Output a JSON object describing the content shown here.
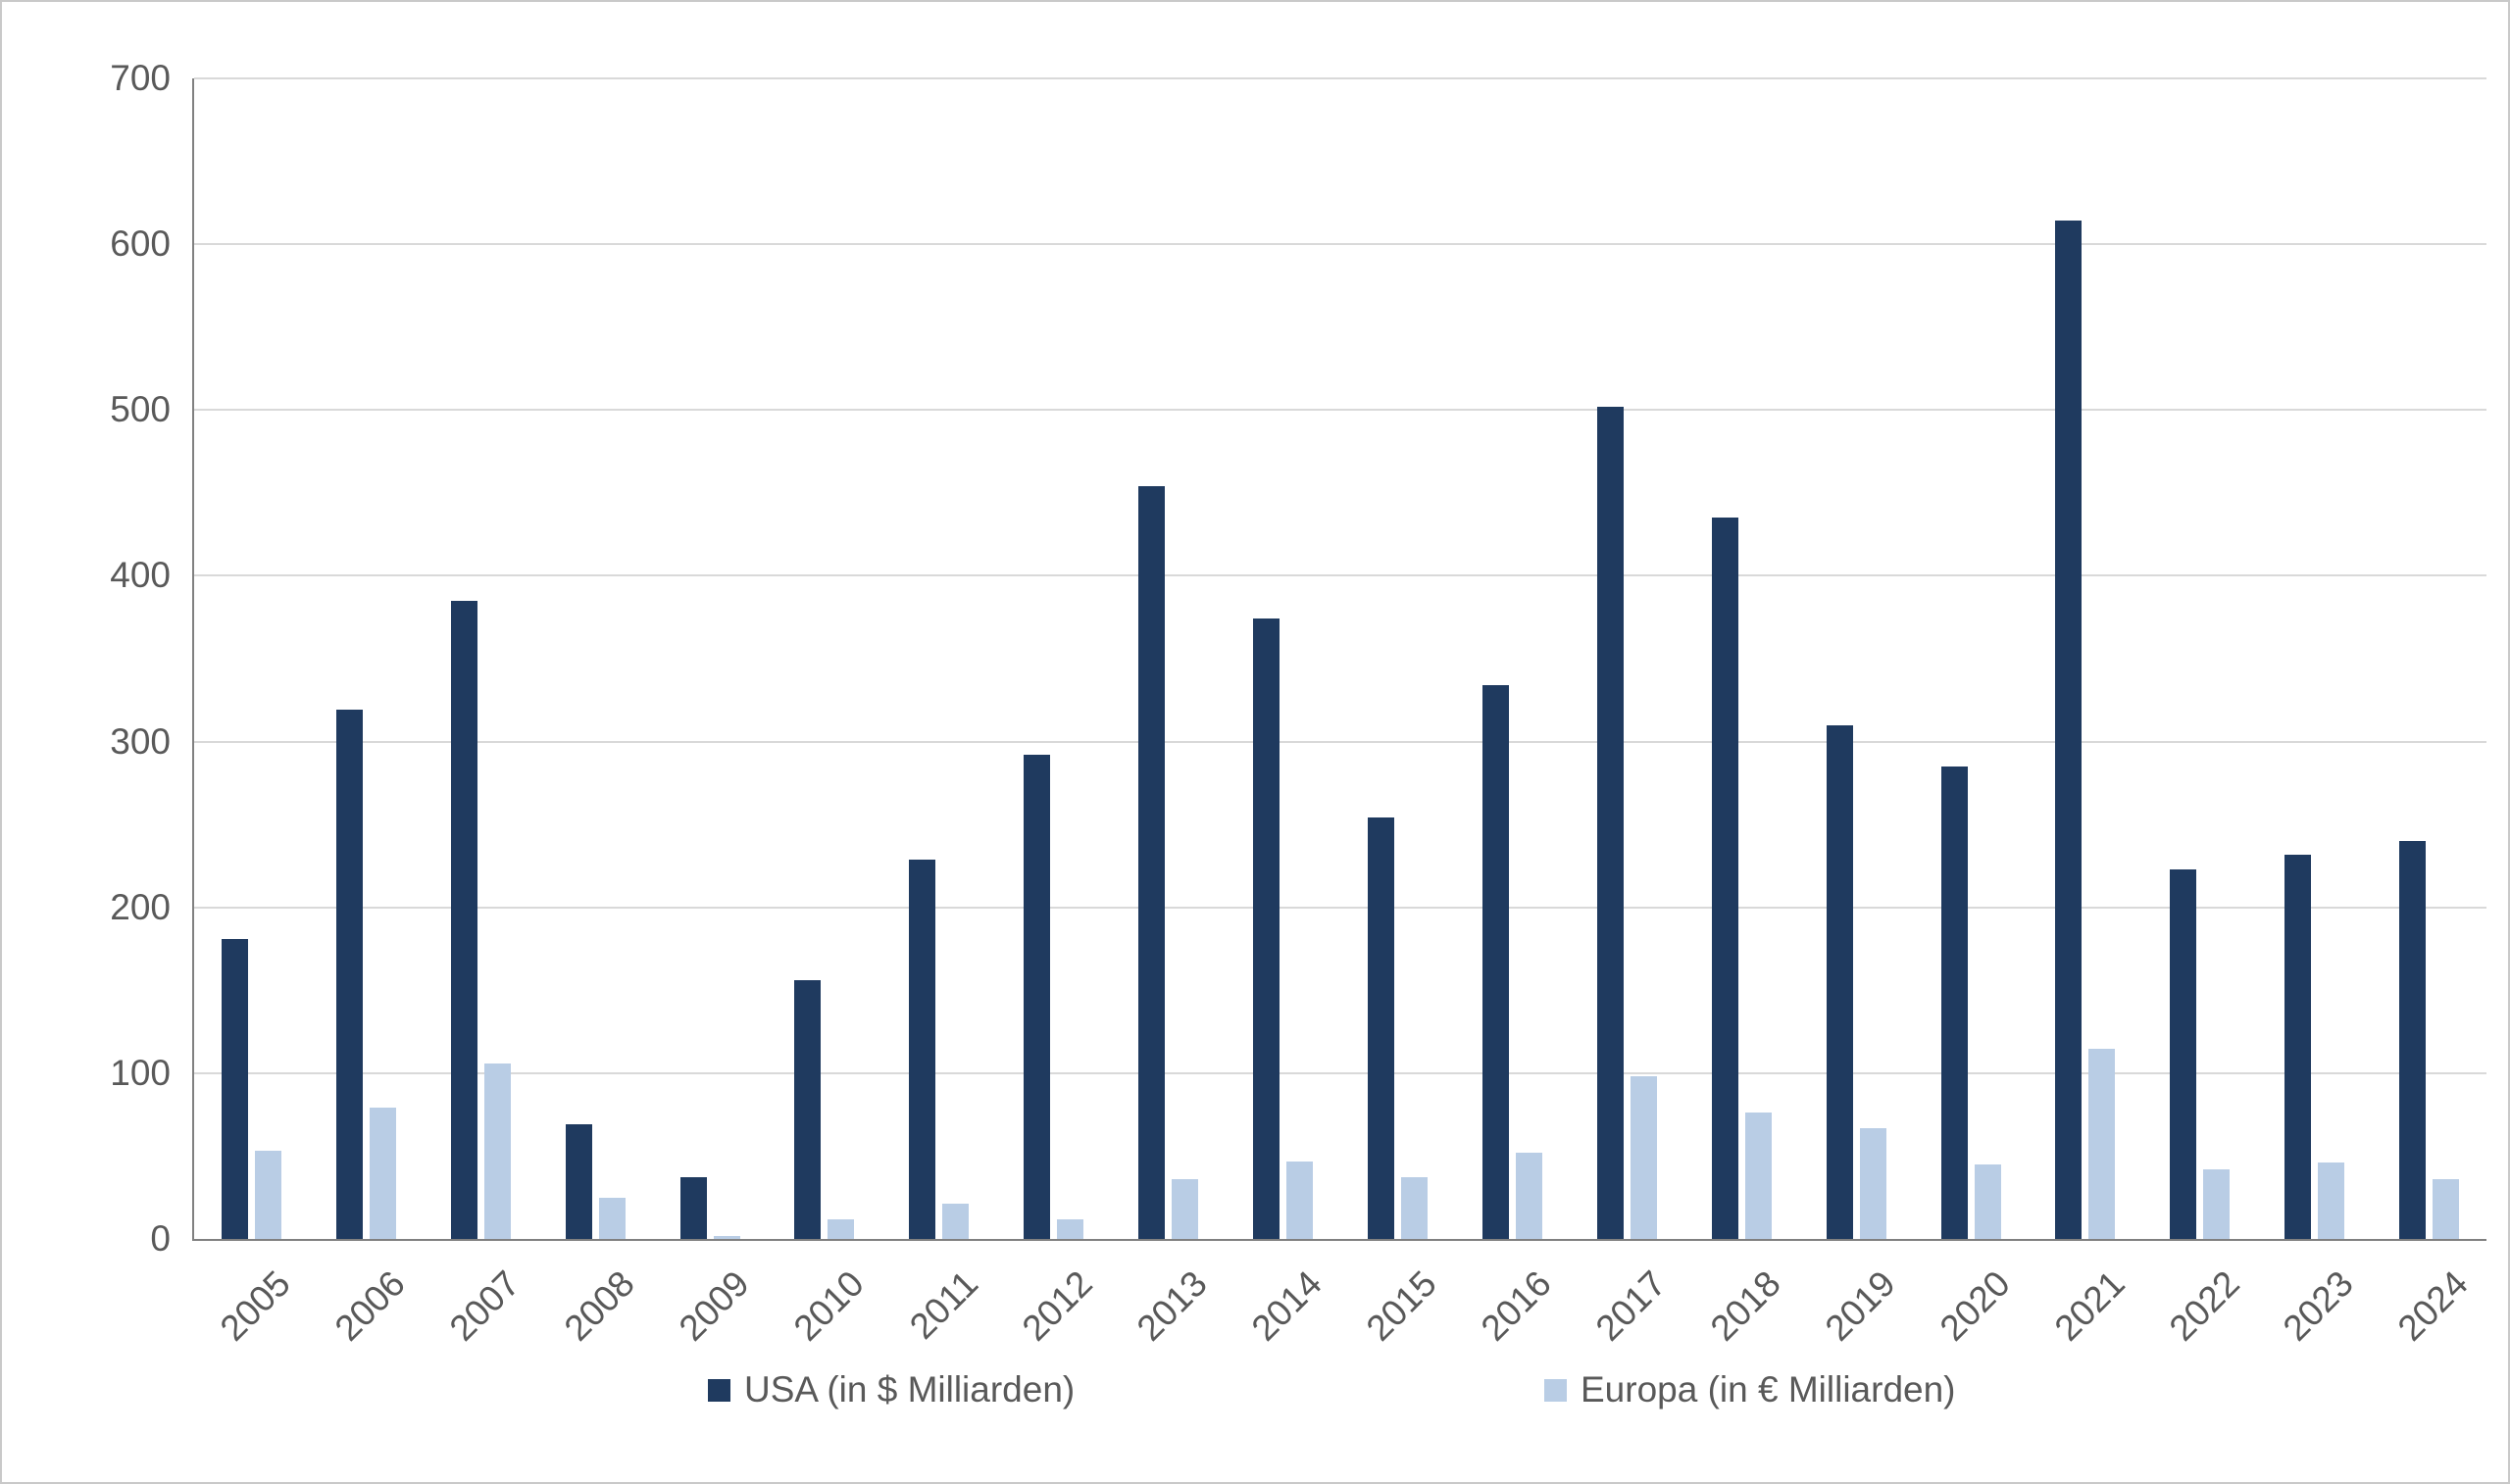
{
  "chart": {
    "colors": {
      "usa_bar": "#1f3a5f",
      "europa_bar": "#b9cde5",
      "gridline": "#d9d9d9",
      "axis_line": "#808080",
      "text": "#595959",
      "background": "#ffffff",
      "canvas_border": "#c9c9c9"
    },
    "y_axis": {
      "tick_labels": [
        "0",
        "100",
        "200",
        "300",
        "400",
        "500",
        "600",
        "700"
      ],
      "max": 700
    }
  },
  "chart_data": {
    "type": "bar",
    "title": "",
    "xlabel": "",
    "ylabel": "",
    "ylim": [
      0,
      700
    ],
    "grid": true,
    "legend_position": "bottom",
    "categories": [
      "2005",
      "2006",
      "2007",
      "2008",
      "2009",
      "2010",
      "2011",
      "2012",
      "2013",
      "2014",
      "2015",
      "2016",
      "2017",
      "2018",
      "2019",
      "2020",
      "2021",
      "2022",
      "2023",
      "2024"
    ],
    "series": [
      {
        "name": "USA (in $ Milliarden)",
        "color": "#1f3a5f",
        "values": [
          181,
          319,
          385,
          69,
          37,
          156,
          229,
          292,
          454,
          374,
          254,
          334,
          502,
          435,
          310,
          285,
          614,
          223,
          232,
          240
        ]
      },
      {
        "name": "Europa (in € Milliarden)",
        "color": "#b9cde5",
        "values": [
          53,
          79,
          106,
          25,
          2,
          12,
          21,
          12,
          36,
          47,
          37,
          52,
          98,
          76,
          67,
          45,
          115,
          42,
          46,
          36
        ]
      }
    ]
  }
}
